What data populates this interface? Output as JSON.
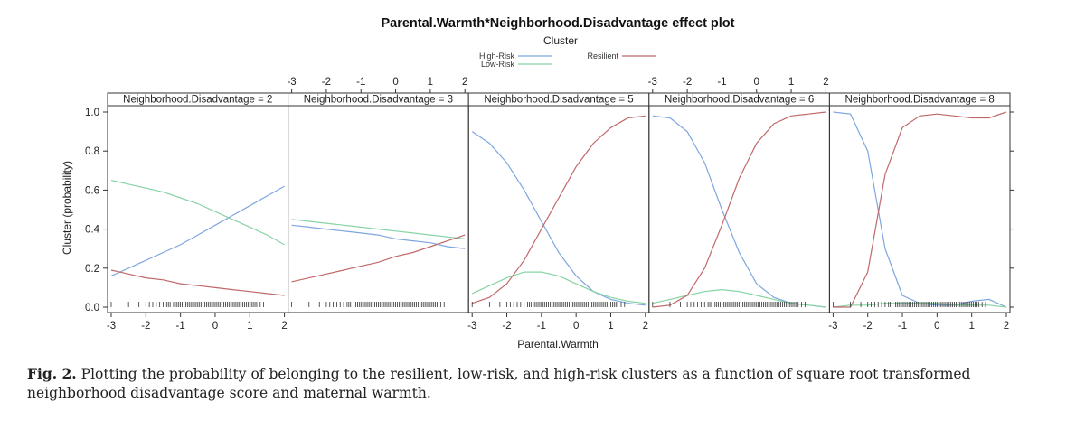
{
  "chart_data": {
    "type": "line",
    "title": "Parental.Warmth*Neighborhood.Disadvantage effect plot",
    "legend": {
      "title": "Cluster",
      "placement": "top",
      "entries": [
        {
          "name": "High-Risk",
          "color": "#7ea6e0"
        },
        {
          "name": "Low-Risk",
          "color": "#86d3a4"
        },
        {
          "name": "Resilient",
          "color": "#c0686a"
        }
      ]
    },
    "xlabel": "Parental.Warmth",
    "ylabel": "Cluster (probability)",
    "xlim": [
      -3,
      2
    ],
    "ylim": [
      0,
      1
    ],
    "xticks": [
      "-3",
      "-2",
      "-1",
      "0",
      "1",
      "2"
    ],
    "yticks": [
      "0.0",
      "0.2",
      "0.4",
      "0.6",
      "0.8",
      "1.0"
    ],
    "x": [
      -3,
      -2.5,
      -2,
      -1.5,
      -1,
      -0.5,
      0,
      0.5,
      1,
      1.5,
      2
    ],
    "panels": [
      {
        "label": "Neighborhood.Disadvantage = 2",
        "series": [
          {
            "name": "High-Risk",
            "values": [
              0.16,
              0.2,
              0.24,
              0.28,
              0.32,
              0.37,
              0.42,
              0.47,
              0.52,
              0.57,
              0.62
            ]
          },
          {
            "name": "Low-Risk",
            "values": [
              0.65,
              0.63,
              0.61,
              0.59,
              0.56,
              0.53,
              0.49,
              0.45,
              0.41,
              0.37,
              0.32
            ]
          },
          {
            "name": "Resilient",
            "values": [
              0.19,
              0.17,
              0.15,
              0.14,
              0.12,
              0.11,
              0.1,
              0.09,
              0.08,
              0.07,
              0.06
            ]
          }
        ]
      },
      {
        "label": "Neighborhood.Disadvantage = 3",
        "series": [
          {
            "name": "High-Risk",
            "values": [
              0.42,
              0.41,
              0.4,
              0.39,
              0.38,
              0.37,
              0.35,
              0.34,
              0.33,
              0.31,
              0.3
            ]
          },
          {
            "name": "Low-Risk",
            "values": [
              0.45,
              0.44,
              0.43,
              0.42,
              0.41,
              0.4,
              0.39,
              0.38,
              0.37,
              0.36,
              0.35
            ]
          },
          {
            "name": "Resilient",
            "values": [
              0.13,
              0.15,
              0.17,
              0.19,
              0.21,
              0.23,
              0.26,
              0.28,
              0.31,
              0.34,
              0.37
            ]
          }
        ]
      },
      {
        "label": "Neighborhood.Disadvantage = 5",
        "series": [
          {
            "name": "High-Risk",
            "values": [
              0.9,
              0.84,
              0.74,
              0.6,
              0.44,
              0.28,
              0.16,
              0.08,
              0.04,
              0.02,
              0.01
            ]
          },
          {
            "name": "Low-Risk",
            "values": [
              0.07,
              0.11,
              0.15,
              0.18,
              0.18,
              0.16,
              0.12,
              0.08,
              0.05,
              0.03,
              0.02
            ]
          },
          {
            "name": "Resilient",
            "values": [
              0.02,
              0.05,
              0.12,
              0.24,
              0.4,
              0.56,
              0.72,
              0.84,
              0.92,
              0.97,
              0.98
            ]
          }
        ]
      },
      {
        "label": "Neighborhood.Disadvantage = 6",
        "series": [
          {
            "name": "High-Risk",
            "values": [
              0.98,
              0.97,
              0.9,
              0.74,
              0.5,
              0.28,
              0.12,
              0.05,
              0.02,
              0.01,
              0.0
            ]
          },
          {
            "name": "Low-Risk",
            "values": [
              0.02,
              0.04,
              0.06,
              0.08,
              0.09,
              0.08,
              0.06,
              0.04,
              0.02,
              0.01,
              0.0
            ]
          },
          {
            "name": "Resilient",
            "values": [
              0.0,
              0.01,
              0.06,
              0.2,
              0.42,
              0.66,
              0.84,
              0.94,
              0.98,
              0.99,
              1.0
            ]
          }
        ]
      },
      {
        "label": "Neighborhood.Disadvantage = 8",
        "series": [
          {
            "name": "High-Risk",
            "values": [
              1.0,
              0.99,
              0.8,
              0.3,
              0.06,
              0.02,
              0.01,
              0.01,
              0.03,
              0.04,
              0.0
            ]
          },
          {
            "name": "Low-Risk",
            "values": [
              0.0,
              0.01,
              0.01,
              0.02,
              0.02,
              0.02,
              0.02,
              0.01,
              0.01,
              0.01,
              0.0
            ]
          },
          {
            "name": "Resilient",
            "values": [
              0.0,
              0.0,
              0.18,
              0.68,
              0.92,
              0.98,
              0.99,
              0.98,
              0.97,
              0.97,
              1.0
            ]
          }
        ]
      }
    ],
    "rug_x": [
      -3,
      -2.5,
      -2.2,
      -2.0,
      -1.9,
      -1.8,
      -1.7,
      -1.6,
      -1.5,
      -1.4,
      -1.35,
      -1.3,
      -1.2,
      -1.15,
      -1.1,
      -1.05,
      -1.0,
      -0.95,
      -0.9,
      -0.85,
      -0.8,
      -0.75,
      -0.7,
      -0.65,
      -0.6,
      -0.55,
      -0.5,
      -0.45,
      -0.4,
      -0.35,
      -0.3,
      -0.25,
      -0.2,
      -0.15,
      -0.1,
      -0.05,
      0.0,
      0.05,
      0.1,
      0.15,
      0.2,
      0.25,
      0.3,
      0.35,
      0.4,
      0.45,
      0.5,
      0.55,
      0.6,
      0.65,
      0.7,
      0.75,
      0.8,
      0.85,
      0.9,
      0.95,
      1.0,
      1.05,
      1.1,
      1.15,
      1.2,
      1.3,
      1.4
    ]
  },
  "caption": {
    "label": "Fig. 2.",
    "text": "Plotting the probability of belonging to the resilient, low-risk, and high-risk clusters as a function of square root transformed neighborhood disadvantage score and maternal warmth."
  }
}
